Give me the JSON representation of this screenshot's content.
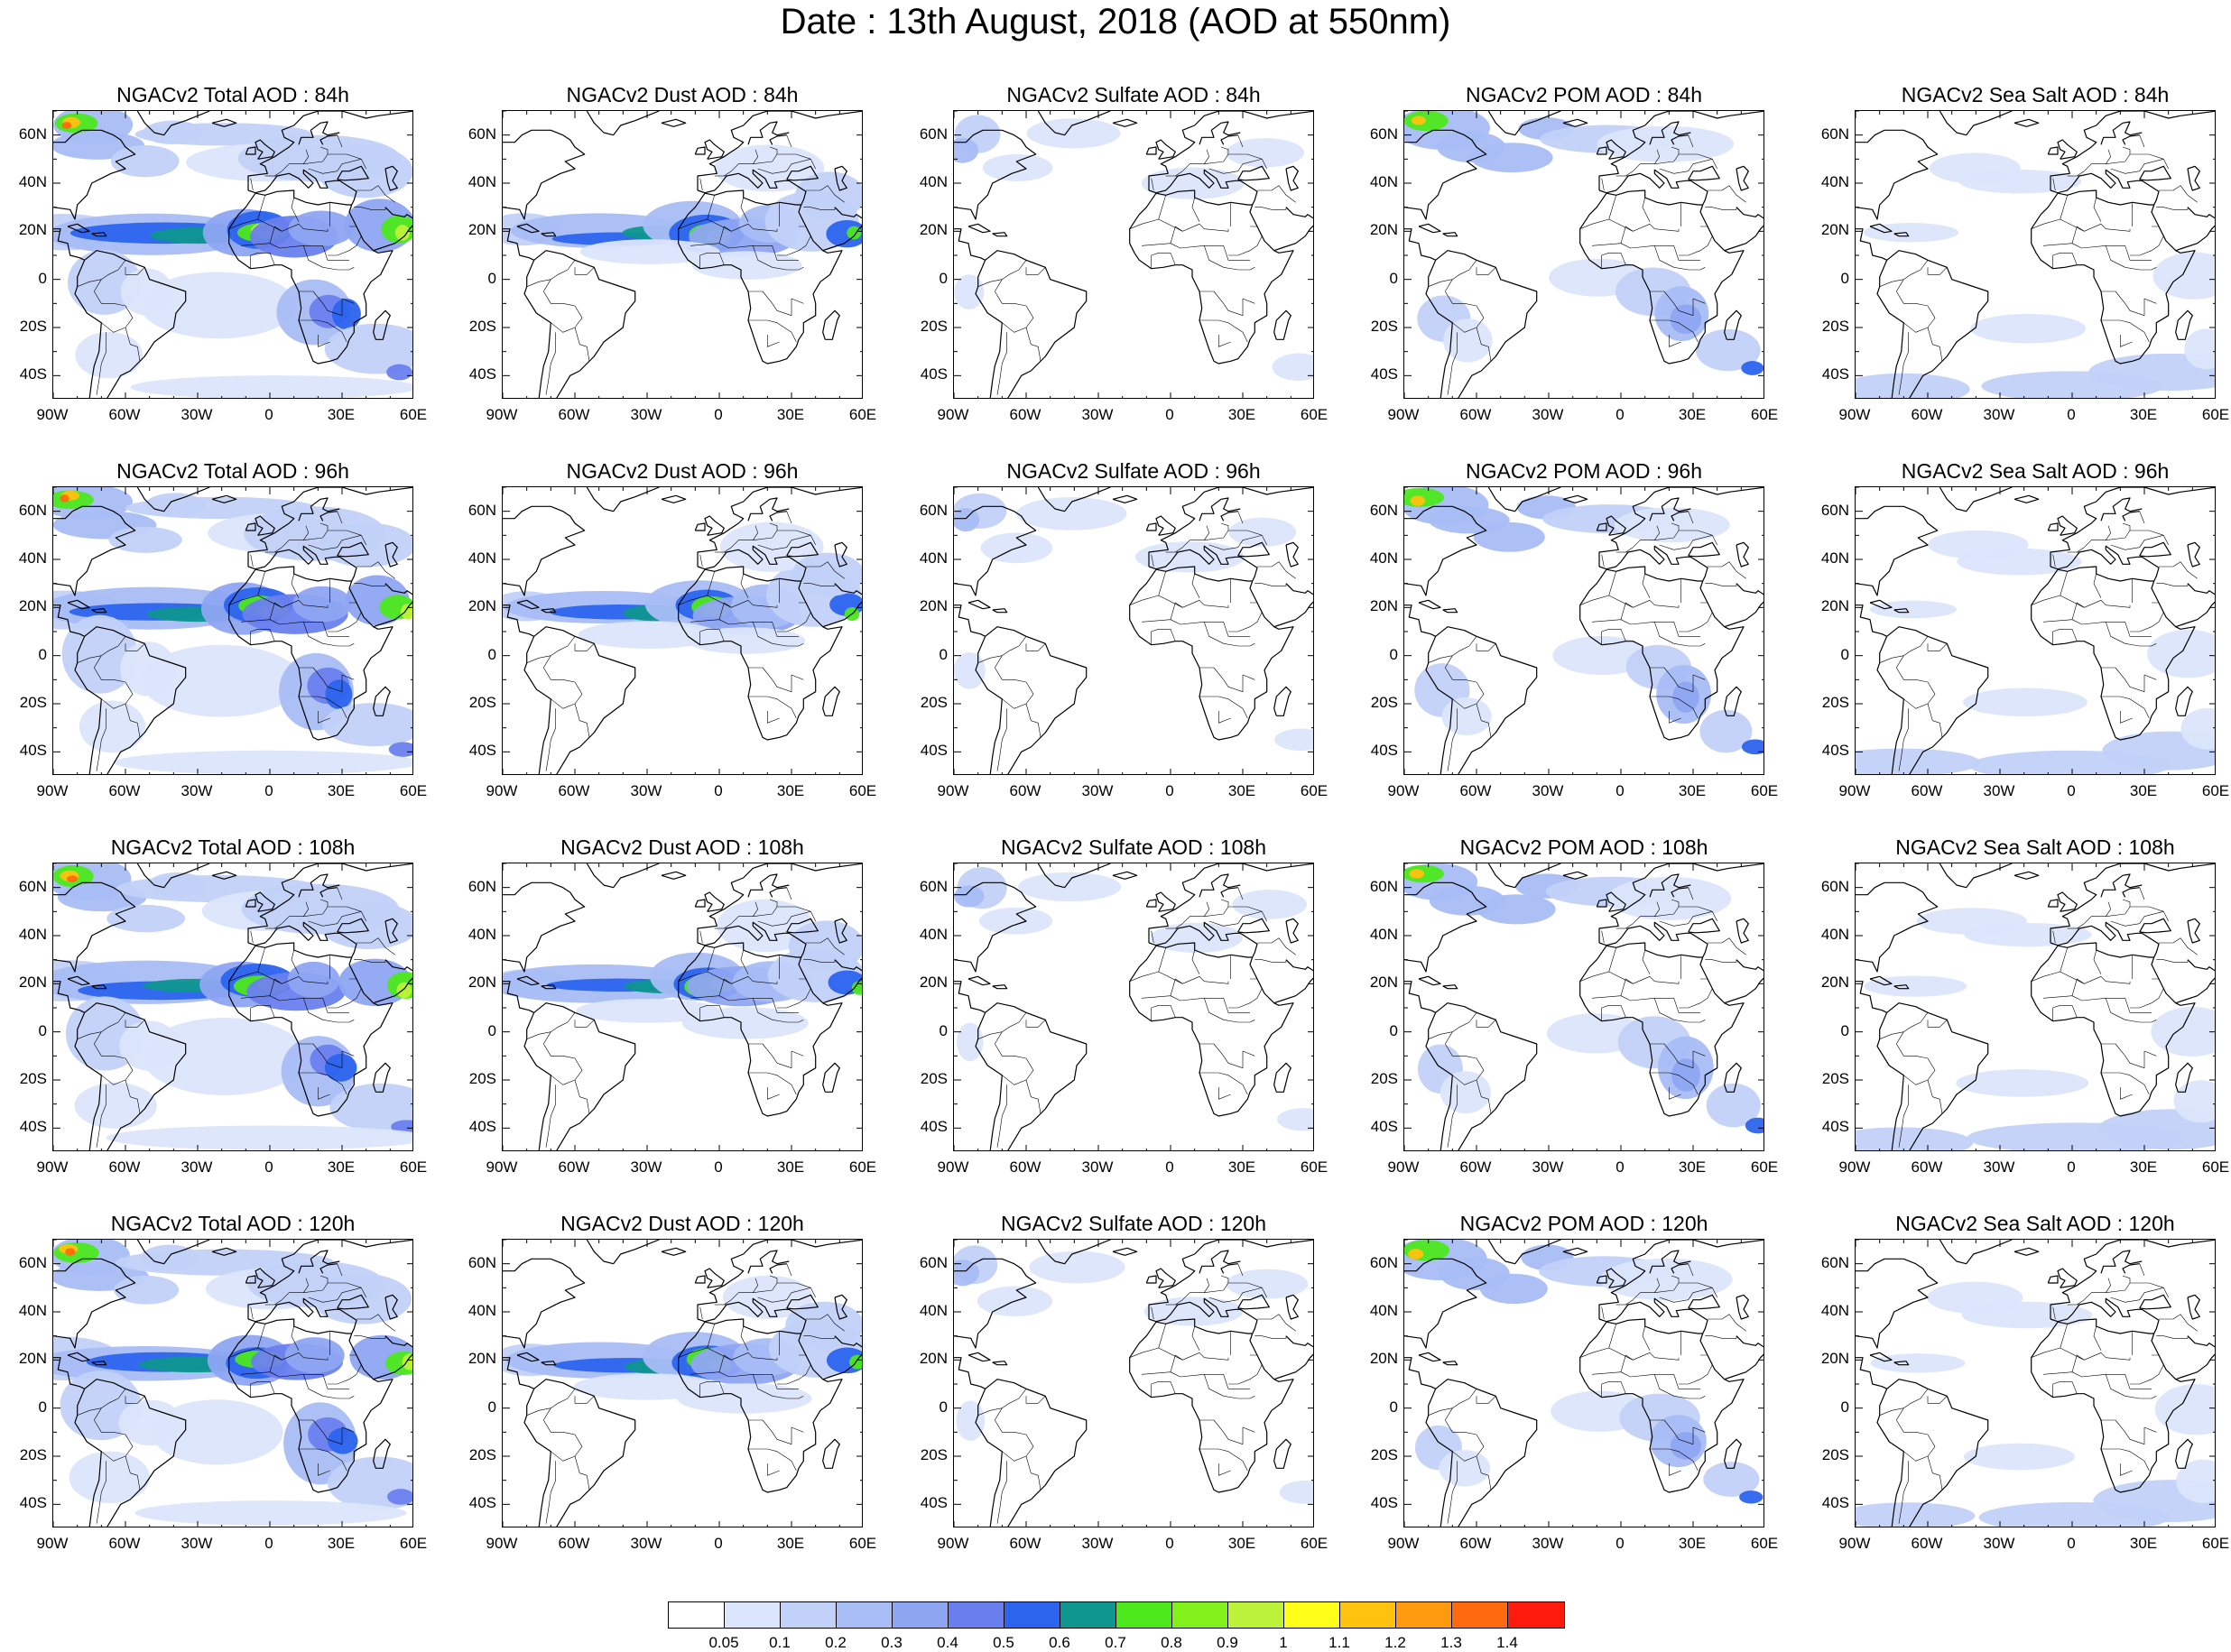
{
  "title": "Date : 13th August, 2018 (AOD at 550nm)",
  "panel_titles": [
    [
      "NGACv2 Total AOD : 84h",
      "NGACv2 Dust AOD : 84h",
      "NGACv2 Sulfate AOD : 84h",
      "NGACv2 POM AOD : 84h",
      "NGACv2 Sea Salt AOD : 84h"
    ],
    [
      "NGACv2 Total AOD : 96h",
      "NGACv2 Dust AOD : 96h",
      "NGACv2 Sulfate AOD : 96h",
      "NGACv2 POM AOD : 96h",
      "NGACv2 Sea Salt AOD : 96h"
    ],
    [
      "NGACv2 Total AOD : 108h",
      "NGACv2 Dust AOD : 108h",
      "NGACv2 Sulfate AOD : 108h",
      "NGACv2 POM AOD : 108h",
      "NGACv2 Sea Salt AOD : 108h"
    ],
    [
      "NGACv2 Total AOD : 120h",
      "NGACv2 Dust AOD : 120h",
      "NGACv2 Sulfate AOD : 120h",
      "NGACv2 POM AOD : 120h",
      "NGACv2 Sea Salt  AOD : 120h"
    ]
  ],
  "lat_labels": [
    "60N",
    "40N",
    "20N",
    "0",
    "20S",
    "40S"
  ],
  "lon_labels": [
    "90W",
    "60W",
    "30W",
    "0",
    "30E",
    "60E"
  ],
  "colorbar": {
    "labels": [
      "0.05",
      "0.1",
      "0.2",
      "0.3",
      "0.4",
      "0.5",
      "0.6",
      "0.7",
      "0.8",
      "0.9",
      "1",
      "1.1",
      "1.2",
      "1.3",
      "1.4"
    ],
    "colors": [
      "#ffffff",
      "#dbe5fb",
      "#c2d1f8",
      "#a8bdf5",
      "#8ea5f2",
      "#6a7fee",
      "#2c64ee",
      "#0f968e",
      "#4de81c",
      "#82f01a",
      "#bdf23a",
      "#ffff1a",
      "#ffc20e",
      "#ff9a0e",
      "#ff6a0e",
      "#ff1a0e"
    ]
  },
  "map_extent": {
    "lon_min": -90,
    "lon_max": 60,
    "lat_min": -50,
    "lat_max": 70
  }
}
